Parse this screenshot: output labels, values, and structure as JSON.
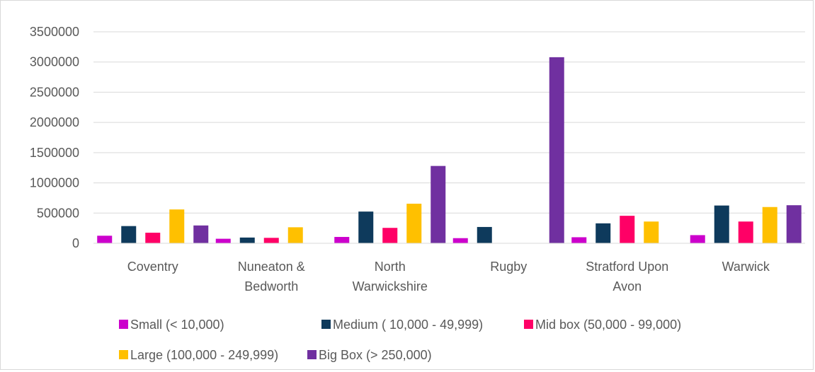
{
  "chart_data": {
    "type": "bar",
    "title": "",
    "xlabel": "",
    "ylabel": "",
    "ylim": [
      0,
      3500000
    ],
    "yticks": [
      0,
      500000,
      1000000,
      1500000,
      2000000,
      2500000,
      3000000,
      3500000
    ],
    "ytick_labels": [
      "0",
      "500000",
      "1000000",
      "1500000",
      "2000000",
      "2500000",
      "3000000",
      "3500000"
    ],
    "grid": true,
    "legend_position": "bottom",
    "categories": [
      [
        "Coventry"
      ],
      [
        "Nuneaton &",
        "Bedworth"
      ],
      [
        "North",
        "Warwickshire"
      ],
      [
        "Rugby"
      ],
      [
        "Stratford Upon",
        "Avon"
      ],
      [
        "Warwick"
      ]
    ],
    "series": [
      {
        "name": "Small (< 10,000)",
        "color": "#cc00cc",
        "values": [
          125000,
          75000,
          105000,
          85000,
          100000,
          135000
        ]
      },
      {
        "name": "Medium ( 10,000 - 49,999)",
        "color": "#0e3a5c",
        "values": [
          285000,
          95000,
          525000,
          270000,
          330000,
          625000
        ]
      },
      {
        "name": "Mid box (50,000 - 99,000)",
        "color": "#ff0066",
        "values": [
          175000,
          90000,
          255000,
          0,
          455000,
          360000
        ]
      },
      {
        "name": "Large (100,000 - 249,999)",
        "color": "#ffc000",
        "values": [
          560000,
          265000,
          655000,
          0,
          360000,
          600000
        ]
      },
      {
        "name": "Big Box (> 250,000)",
        "color": "#7030a0",
        "values": [
          295000,
          0,
          1280000,
          3080000,
          0,
          630000
        ]
      }
    ]
  }
}
